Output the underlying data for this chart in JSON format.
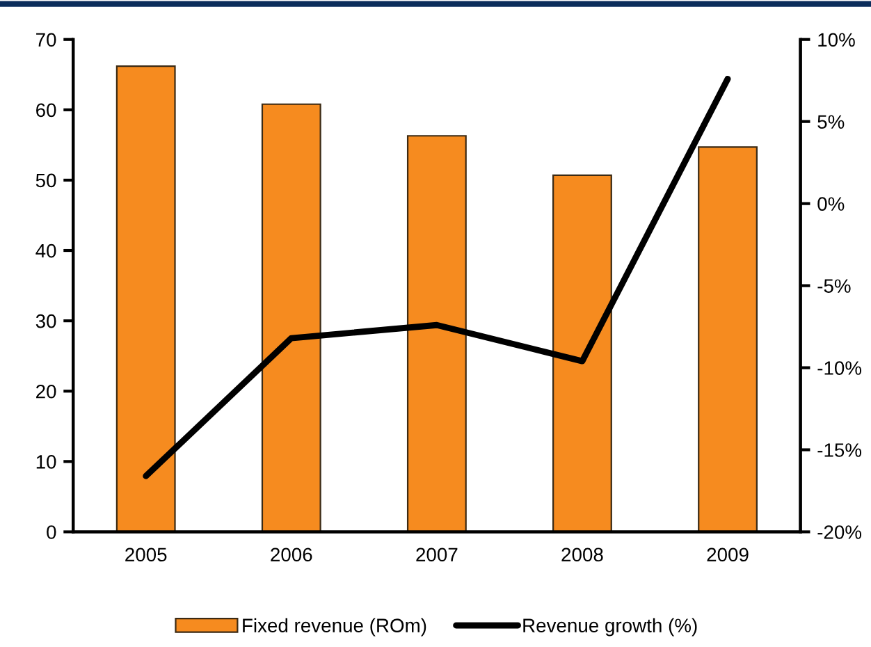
{
  "chart_data": {
    "type": "bar",
    "categories": [
      "2005",
      "2006",
      "2007",
      "2008",
      "2009"
    ],
    "series": [
      {
        "name": "Fixed revenue (ROm)",
        "color": "#f68b1f",
        "values": [
          66.2,
          60.8,
          56.3,
          50.7,
          54.7
        ]
      },
      {
        "name": "Revenue growth (%)",
        "type": "line",
        "axis": "y2",
        "color": "#000000",
        "values": [
          -16.6,
          -8.2,
          -7.4,
          -9.6,
          7.6
        ]
      }
    ],
    "ylim": [
      0,
      70
    ],
    "yticks": [
      0,
      10,
      20,
      30,
      40,
      50,
      60,
      70
    ],
    "y2lim": [
      -20,
      10
    ],
    "y2ticks": [
      {
        "value": -20,
        "label": "-20%"
      },
      {
        "value": -15,
        "label": "-15%"
      },
      {
        "value": -10,
        "label": "-10%"
      },
      {
        "value": -5,
        "label": "-5%"
      },
      {
        "value": 0,
        "label": "0%"
      },
      {
        "value": 5,
        "label": "5%"
      },
      {
        "value": 10,
        "label": "10%"
      }
    ],
    "legend": "bottom"
  }
}
